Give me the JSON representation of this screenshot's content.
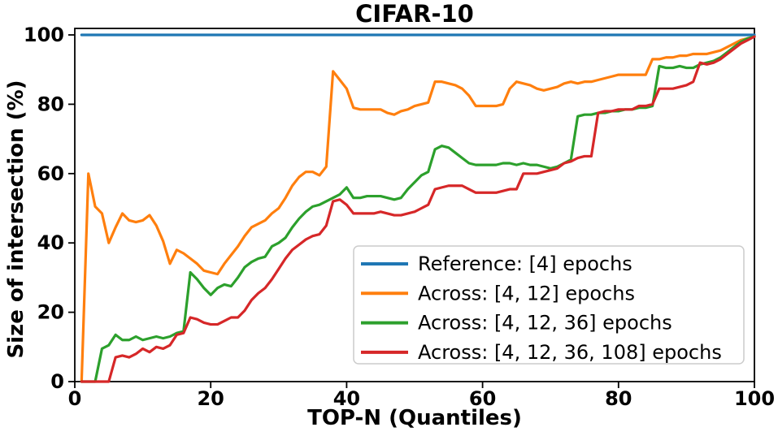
{
  "chart": {
    "title": "CIFAR-10",
    "xlabel": "TOP-N (Quantiles)",
    "ylabel": "Size of intersection (%)"
  },
  "chart_data": {
    "type": "line",
    "title": "CIFAR-10",
    "xlabel": "TOP-N (Quantiles)",
    "ylabel": "Size of intersection (%)",
    "xlim": [
      0,
      100
    ],
    "ylim": [
      0,
      102
    ],
    "x_ticks": [
      0,
      20,
      40,
      60,
      80,
      100
    ],
    "y_ticks": [
      0,
      20,
      40,
      60,
      80,
      100
    ],
    "grid": false,
    "legend_position": "center-right inside",
    "x": {
      "start": 1,
      "end": 100,
      "step": 1,
      "meaning": "TOP-N quantile"
    },
    "series": [
      {
        "name": "Reference: [4] epochs",
        "color": "#1f77b4",
        "constant": 100
      },
      {
        "name": "Across: [4, 12] epochs",
        "color": "#ff7f0e",
        "values": [
          0,
          60,
          50.5,
          48.5,
          40,
          44.5,
          48.5,
          46.5,
          46,
          46.5,
          48,
          45,
          40.5,
          34,
          38,
          37,
          35.5,
          34,
          32,
          31.5,
          31,
          34,
          36.5,
          39,
          42,
          44.5,
          45.5,
          46.5,
          48.5,
          50,
          53,
          56.5,
          59,
          60.5,
          60.5,
          59.5,
          62,
          89.5,
          87,
          84.5,
          79,
          78.5,
          78.5,
          78.5,
          78.5,
          77.5,
          77,
          78,
          78.5,
          79.5,
          80,
          80.5,
          86.5,
          86.5,
          86,
          85.5,
          84.5,
          82.5,
          79.5,
          79.5,
          79.5,
          79.5,
          80,
          84.5,
          86.5,
          86,
          85.5,
          84.5,
          84,
          84.5,
          85,
          86,
          86.5,
          86,
          86.5,
          86.5,
          87,
          87.5,
          88,
          88.5,
          88.5,
          88.5,
          88.5,
          88.5,
          93,
          93,
          93.5,
          93.5,
          94,
          94,
          94.5,
          94.5,
          94.5,
          95,
          95.5,
          96.5,
          97.5,
          98.5,
          99,
          99.5
        ]
      },
      {
        "name": "Across: [4, 12, 36] epochs",
        "color": "#2ca02c",
        "values": [
          0,
          0,
          0,
          9.5,
          10.5,
          13.5,
          12,
          12,
          13,
          12,
          12.5,
          13,
          12.5,
          13,
          14,
          14.5,
          31.5,
          29.5,
          27,
          25,
          27,
          28,
          27.5,
          30,
          33,
          34.5,
          35.5,
          36,
          39,
          40,
          41.5,
          44.5,
          47,
          49,
          50.5,
          51,
          52,
          53,
          54,
          56,
          53,
          53,
          53.5,
          53.5,
          53.5,
          53,
          52.5,
          53,
          55.5,
          57.5,
          59.5,
          60.5,
          67,
          68,
          67.5,
          66,
          64.5,
          63,
          62.5,
          62.5,
          62.5,
          62.5,
          63,
          63,
          62.5,
          63,
          62.5,
          62.5,
          62,
          61.5,
          62,
          63,
          64,
          76.5,
          77,
          77,
          77.5,
          77.5,
          78,
          78,
          78.5,
          78.5,
          79,
          79,
          79.5,
          91,
          90.5,
          90.5,
          91,
          90.5,
          90.5,
          91.5,
          92,
          92.5,
          93.5,
          95,
          96.5,
          98,
          99,
          99.5
        ]
      },
      {
        "name": "Across: [4, 12, 36, 108] epochs",
        "color": "#d62728",
        "values": [
          0,
          0,
          0,
          0,
          0,
          7,
          7.5,
          7,
          8,
          9.5,
          8.5,
          10,
          9.5,
          10.5,
          13.5,
          14,
          18.5,
          18,
          17,
          16.5,
          16.5,
          17.5,
          18.5,
          18.5,
          20.5,
          23.5,
          25.5,
          27,
          29.5,
          32.5,
          35.5,
          38,
          39.5,
          41,
          42,
          42.5,
          45,
          52,
          52.5,
          51,
          48.5,
          48.5,
          48.5,
          48.5,
          49,
          48.5,
          48,
          48,
          48.5,
          49,
          50,
          51,
          55.5,
          56,
          56.5,
          56.5,
          56.5,
          55.5,
          54.5,
          54.5,
          54.5,
          54.5,
          55,
          55.5,
          55.5,
          60,
          60,
          60,
          60.5,
          61,
          61.5,
          63,
          63.5,
          64.5,
          65,
          65,
          77.5,
          78,
          78,
          78.5,
          78.5,
          78.5,
          79.5,
          79.5,
          80,
          84.5,
          84.5,
          84.5,
          85,
          85.5,
          86.5,
          92,
          91.5,
          92,
          93,
          94.5,
          96,
          97.5,
          98.5,
          99.5
        ]
      }
    ]
  },
  "legend": {
    "entries": [
      "Reference: [4] epochs",
      "Across: [4, 12] epochs",
      "Across: [4, 12, 36] epochs",
      "Across: [4, 12, 36, 108] epochs"
    ]
  },
  "colors": {
    "reference_blue": "#1f77b4",
    "across2_orange": "#ff7f0e",
    "across3_green": "#2ca02c",
    "across4_red": "#d62728",
    "axis": "#000000",
    "legend_border": "#cccccc",
    "background": "#ffffff"
  }
}
